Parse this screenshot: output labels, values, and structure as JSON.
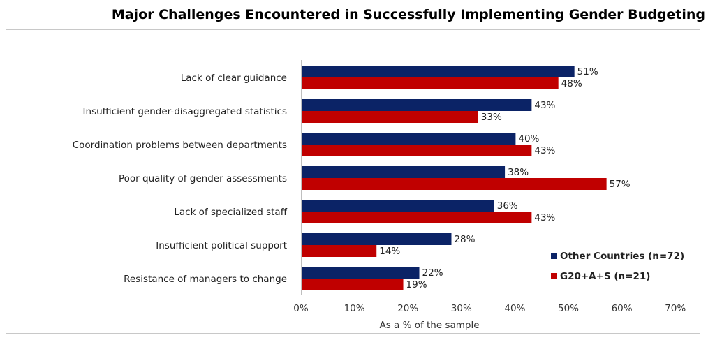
{
  "chart_data": {
    "type": "bar",
    "orientation": "horizontal",
    "title": "Major Challenges Encountered in Successfully Implementing Gender Budgeting",
    "xlabel": "As a % of the sample",
    "ylabel": "",
    "xlim": [
      0,
      70
    ],
    "xticks": [
      "0%",
      "10%",
      "20%",
      "30%",
      "40%",
      "50%",
      "60%",
      "70%"
    ],
    "categories": [
      "Lack of clear guidance",
      "Insufficient gender-disaggregated statistics",
      "Coordination problems between departments",
      "Poor quality of gender assessments",
      "Lack of specialized staff",
      "Insufficient political support",
      "Resistance of managers to change"
    ],
    "series": [
      {
        "name": "Other Countries (n=72)",
        "color": "#0b2366",
        "values": [
          51,
          43,
          40,
          38,
          36,
          28,
          22
        ]
      },
      {
        "name": "G20+A+S (n=21)",
        "color": "#c00000",
        "values": [
          48,
          33,
          43,
          57,
          43,
          14,
          19
        ]
      }
    ],
    "legend_position": "bottom-right",
    "grid": false
  }
}
